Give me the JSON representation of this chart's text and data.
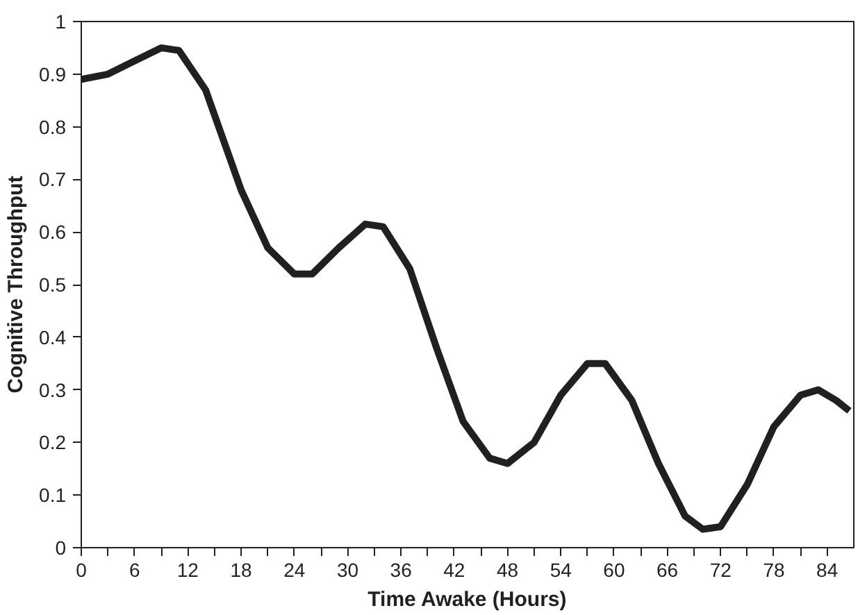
{
  "chart_data": {
    "type": "line",
    "xlabel": "Time Awake (Hours)",
    "ylabel": "Cognitive Throughput",
    "x": [
      0,
      3,
      6,
      9,
      11,
      14,
      18,
      21,
      24,
      26,
      29,
      32,
      34,
      37,
      40,
      43,
      46,
      48,
      51,
      54,
      57,
      59,
      62,
      65,
      68,
      70,
      72,
      75,
      78,
      81,
      83,
      85,
      86.5
    ],
    "series": [
      {
        "color": "#231f20",
        "values": [
          0.89,
          0.9,
          0.925,
          0.95,
          0.945,
          0.87,
          0.68,
          0.57,
          0.52,
          0.52,
          0.57,
          0.615,
          0.61,
          0.53,
          0.38,
          0.24,
          0.17,
          0.16,
          0.2,
          0.29,
          0.35,
          0.35,
          0.28,
          0.16,
          0.06,
          0.035,
          0.04,
          0.12,
          0.23,
          0.29,
          0.3,
          0.28,
          0.26
        ]
      }
    ],
    "xlim": [
      0,
      87
    ],
    "ylim": [
      0,
      1
    ],
    "xticks": [
      0,
      {
        "value": 3,
        "label": null
      },
      6,
      {
        "value": 9,
        "label": null
      },
      12,
      {
        "value": 15,
        "label": null
      },
      18,
      {
        "value": 21,
        "label": null
      },
      24,
      {
        "value": 27,
        "label": null
      },
      30,
      {
        "value": 33,
        "label": null
      },
      36,
      {
        "value": 39,
        "label": null
      },
      42,
      {
        "value": 45,
        "label": null
      },
      48,
      {
        "value": 51,
        "label": null
      },
      54,
      {
        "value": 57,
        "label": null
      },
      60,
      {
        "value": 63,
        "label": null
      },
      66,
      {
        "value": 69,
        "label": null
      },
      72,
      {
        "value": 75,
        "label": null
      },
      78,
      {
        "value": 81,
        "label": null
      },
      84
    ],
    "yticks": [
      0,
      0.1,
      0.2,
      0.3,
      0.4,
      0.5,
      0.6,
      0.7,
      0.8,
      0.9,
      1
    ],
    "grid": false,
    "marker": "none",
    "line_style": "solid"
  }
}
